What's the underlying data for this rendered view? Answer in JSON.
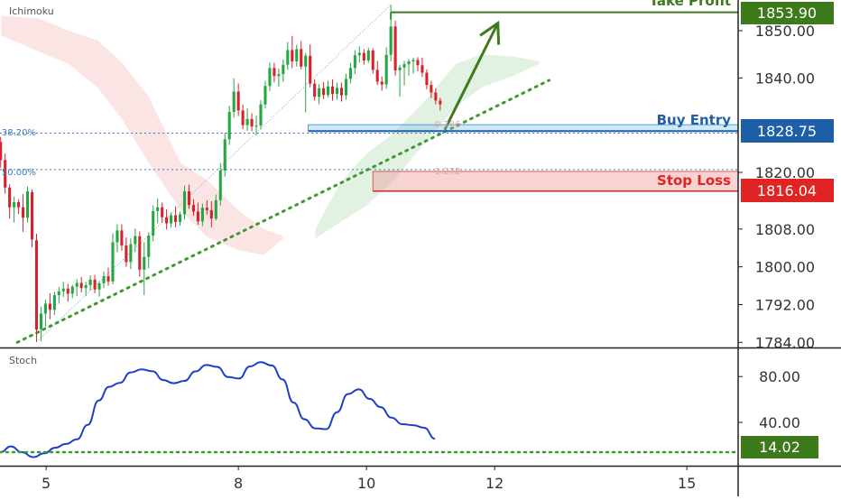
{
  "panels": {
    "price_label": "Ichimoku",
    "oscillator_label": "Stoch"
  },
  "annotations": {
    "take_profit": {
      "label": "Take Profit",
      "price": "1853.90",
      "color": "#3d7a1c"
    },
    "buy_entry": {
      "label": "Buy Entry",
      "price": "1828.75",
      "color": "#1f5fa8"
    },
    "stop_loss": {
      "label": "Stop Loss",
      "price": "1816.04",
      "color": "#e02424"
    },
    "fib_left": [
      {
        "label": "38.20%",
        "value": 1828.3
      },
      {
        "label": "50.00%",
        "value": 1820.6
      }
    ],
    "fib_inner": [
      {
        "label": "0.786",
        "value": 1829.2
      },
      {
        "label": "1.272",
        "value": 1820.4
      }
    ]
  },
  "chart_data": [
    {
      "type": "candlestick",
      "title": "",
      "xlabel": "",
      "ylabel": "",
      "ylim": [
        1783.3,
        1856.5
      ],
      "y_ticks": [
        "1784.00",
        "1792.00",
        "1800.00",
        "1808.00",
        "1820.00",
        "1840.00",
        "1850.00"
      ],
      "x_ticks": [
        "5",
        "8",
        "10",
        "12",
        "15"
      ],
      "x_tick_pos": [
        5,
        8,
        10,
        12,
        15
      ],
      "xlim": [
        4.28,
        15.8
      ],
      "colors": {
        "up": "#26a641",
        "down": "#d6222c"
      },
      "ohlc_notes": "open/high/low/close per bar, read approximately off the price axis",
      "bars": [
        [
          4.29,
          1826.4,
          1827.5,
          1821.0,
          1822.6
        ],
        [
          4.36,
          1822.6,
          1824.0,
          1815.5,
          1816.8
        ],
        [
          4.43,
          1816.8,
          1817.5,
          1810.2,
          1812.6
        ],
        [
          4.5,
          1812.6,
          1814.8,
          1809.4,
          1813.7
        ],
        [
          4.57,
          1813.7,
          1814.3,
          1811.2,
          1812.6
        ],
        [
          4.64,
          1812.6,
          1815.4,
          1807.4,
          1810.4
        ],
        [
          4.71,
          1810.4,
          1817.0,
          1809.4,
          1816.0
        ],
        [
          4.78,
          1815.8,
          1816.4,
          1804.1,
          1805.8
        ],
        [
          4.85,
          1805.6,
          1807.0,
          1784.1,
          1786.7
        ],
        [
          4.92,
          1786.8,
          1791.6,
          1784.2,
          1790.1
        ],
        [
          4.99,
          1790.1,
          1793.0,
          1787.3,
          1792.2
        ],
        [
          5.06,
          1792.2,
          1794.4,
          1788.9,
          1790.9
        ],
        [
          5.13,
          1790.9,
          1794.7,
          1789.8,
          1794.0
        ],
        [
          5.2,
          1794.0,
          1795.7,
          1792.2,
          1794.8
        ],
        [
          5.27,
          1794.8,
          1796.8,
          1793.6,
          1795.4
        ],
        [
          5.34,
          1795.4,
          1796.4,
          1792.6,
          1794.3
        ],
        [
          5.41,
          1794.3,
          1796.2,
          1793.4,
          1795.8
        ],
        [
          5.48,
          1795.8,
          1797.4,
          1793.8,
          1796.6
        ],
        [
          5.55,
          1796.6,
          1797.8,
          1794.6,
          1795.5
        ],
        [
          5.62,
          1795.5,
          1796.8,
          1793.8,
          1796.1
        ],
        [
          5.69,
          1796.1,
          1798.2,
          1795.0,
          1797.3
        ],
        [
          5.76,
          1797.3,
          1798.3,
          1794.4,
          1795.2
        ],
        [
          5.83,
          1795.2,
          1797.0,
          1793.7,
          1796.5
        ],
        [
          5.9,
          1796.5,
          1799.0,
          1795.5,
          1798.0
        ],
        [
          5.97,
          1798.0,
          1799.8,
          1796.0,
          1796.9
        ],
        [
          6.04,
          1796.9,
          1807.1,
          1796.3,
          1805.2
        ],
        [
          6.11,
          1805.2,
          1809.0,
          1803.1,
          1807.7
        ],
        [
          6.18,
          1807.7,
          1809.0,
          1803.4,
          1804.5
        ],
        [
          6.25,
          1804.5,
          1806.2,
          1800.0,
          1801.0
        ],
        [
          6.32,
          1801.0,
          1806.0,
          1799.5,
          1804.8
        ],
        [
          6.39,
          1804.8,
          1808.1,
          1803.1,
          1806.5
        ],
        [
          6.46,
          1806.5,
          1807.5,
          1797.9,
          1799.4
        ],
        [
          6.53,
          1799.4,
          1805.2,
          1794.0,
          1802.1
        ],
        [
          6.6,
          1802.1,
          1807.3,
          1799.7,
          1806.6
        ],
        [
          6.67,
          1806.6,
          1813.0,
          1805.4,
          1811.8
        ],
        [
          6.74,
          1811.8,
          1814.5,
          1809.2,
          1812.6
        ],
        [
          6.81,
          1812.6,
          1813.6,
          1809.3,
          1810.5
        ],
        [
          6.88,
          1810.5,
          1812.2,
          1807.9,
          1809.2
        ],
        [
          6.95,
          1809.2,
          1811.5,
          1808.3,
          1810.9
        ],
        [
          7.02,
          1810.9,
          1812.8,
          1808.4,
          1809.5
        ],
        [
          7.09,
          1809.5,
          1811.7,
          1808.7,
          1811.1
        ],
        [
          7.16,
          1811.1,
          1817.2,
          1810.0,
          1816.0
        ],
        [
          7.23,
          1816.0,
          1817.4,
          1812.3,
          1813.1
        ],
        [
          7.3,
          1813.1,
          1814.3,
          1810.8,
          1811.7
        ],
        [
          7.37,
          1811.7,
          1813.6,
          1808.9,
          1809.6
        ],
        [
          7.44,
          1809.6,
          1813.4,
          1808.6,
          1812.5
        ],
        [
          7.51,
          1812.5,
          1814.1,
          1811.1,
          1812.0
        ],
        [
          7.58,
          1812.0,
          1813.9,
          1808.4,
          1810.2
        ],
        [
          7.65,
          1810.2,
          1815.3,
          1809.8,
          1814.1
        ],
        [
          7.72,
          1814.1,
          1822.0,
          1813.0,
          1820.4
        ],
        [
          7.79,
          1820.4,
          1828.4,
          1819.1,
          1827.0
        ],
        [
          7.86,
          1827.0,
          1834.1,
          1825.8,
          1832.8
        ],
        [
          7.93,
          1832.8,
          1839.9,
          1831.6,
          1837.1
        ],
        [
          8.0,
          1837.1,
          1838.8,
          1831.9,
          1833.1
        ],
        [
          8.07,
          1833.1,
          1834.4,
          1829.1,
          1830.0
        ],
        [
          8.14,
          1830.0,
          1833.6,
          1828.8,
          1831.3
        ],
        [
          8.21,
          1831.3,
          1832.5,
          1828.7,
          1829.7
        ],
        [
          8.28,
          1829.7,
          1832.0,
          1827.8,
          1829.9
        ],
        [
          8.35,
          1829.9,
          1835.3,
          1829.1,
          1834.4
        ],
        [
          8.42,
          1834.4,
          1839.4,
          1833.5,
          1838.3
        ],
        [
          8.49,
          1838.3,
          1843.3,
          1837.2,
          1842.1
        ],
        [
          8.56,
          1842.1,
          1843.2,
          1839.1,
          1840.4
        ],
        [
          8.63,
          1840.4,
          1842.0,
          1838.1,
          1840.8
        ],
        [
          8.7,
          1840.8,
          1843.9,
          1839.2,
          1842.8
        ],
        [
          8.77,
          1842.8,
          1847.6,
          1841.7,
          1845.9
        ],
        [
          8.84,
          1845.9,
          1848.9,
          1842.1,
          1843.5
        ],
        [
          8.91,
          1843.5,
          1847.0,
          1842.4,
          1846.1
        ],
        [
          8.98,
          1846.1,
          1847.8,
          1841.8,
          1842.4
        ],
        [
          9.05,
          1842.4,
          1845.3,
          1832.7,
          1844.7
        ],
        [
          9.12,
          1844.7,
          1847.1,
          1838.0,
          1838.8
        ],
        [
          9.19,
          1838.8,
          1839.7,
          1835.2,
          1836.0
        ],
        [
          9.26,
          1836.0,
          1838.7,
          1834.4,
          1837.8
        ],
        [
          9.33,
          1837.8,
          1839.1,
          1835.5,
          1836.4
        ],
        [
          9.4,
          1836.4,
          1839.4,
          1835.9,
          1838.2
        ],
        [
          9.47,
          1838.2,
          1839.7,
          1835.2,
          1836.6
        ],
        [
          9.54,
          1836.6,
          1839.0,
          1835.4,
          1837.9
        ],
        [
          9.61,
          1837.9,
          1839.0,
          1835.0,
          1836.3
        ],
        [
          9.68,
          1836.3,
          1840.9,
          1835.4,
          1839.8
        ],
        [
          9.75,
          1839.8,
          1843.2,
          1838.8,
          1842.1
        ],
        [
          9.82,
          1842.1,
          1845.9,
          1840.8,
          1844.8
        ],
        [
          9.89,
          1844.8,
          1846.7,
          1843.2,
          1845.3
        ],
        [
          9.96,
          1845.3,
          1846.1,
          1842.8,
          1843.7
        ],
        [
          10.03,
          1843.7,
          1846.4,
          1843.2,
          1845.8
        ],
        [
          10.1,
          1845.8,
          1846.3,
          1840.9,
          1841.7
        ],
        [
          10.17,
          1841.7,
          1843.6,
          1838.5,
          1839.2
        ],
        [
          10.24,
          1839.2,
          1840.3,
          1837.3,
          1838.6
        ],
        [
          10.31,
          1838.6,
          1846.5,
          1837.7,
          1844.9
        ],
        [
          10.38,
          1844.9,
          1855.5,
          1843.5,
          1850.9
        ],
        [
          10.45,
          1850.9,
          1852.1,
          1840.5,
          1841.6
        ],
        [
          10.52,
          1841.6,
          1842.8,
          1836.0,
          1842.2
        ],
        [
          10.59,
          1842.2,
          1843.6,
          1838.4,
          1842.9
        ],
        [
          10.66,
          1842.9,
          1844.0,
          1840.5,
          1843.5
        ],
        [
          10.73,
          1843.5,
          1844.3,
          1840.9,
          1843.8
        ],
        [
          10.8,
          1843.8,
          1844.4,
          1841.4,
          1842.7
        ],
        [
          10.87,
          1842.7,
          1844.3,
          1840.2,
          1841.1
        ],
        [
          10.94,
          1841.1,
          1841.8,
          1837.6,
          1838.5
        ],
        [
          11.01,
          1838.5,
          1839.4,
          1835.7,
          1836.9
        ],
        [
          11.08,
          1836.9,
          1837.8,
          1834.4,
          1835.2
        ],
        [
          11.15,
          1835.2,
          1835.8,
          1833.1,
          1834.4
        ]
      ],
      "cloud": {
        "red_top": [
          [
            4.3,
            1853.2
          ],
          [
            4.9,
            1852.5
          ],
          [
            5.35,
            1850.0
          ],
          [
            5.8,
            1848.0
          ],
          [
            6.2,
            1843.0
          ],
          [
            6.6,
            1836.0
          ],
          [
            7.1,
            1822.0
          ],
          [
            7.5,
            1818.5
          ],
          [
            8.0,
            1812.0
          ],
          [
            8.4,
            1808.0
          ],
          [
            8.7,
            1806.5
          ]
        ],
        "red_bottom": [
          [
            4.3,
            1849.0
          ],
          [
            4.9,
            1845.5
          ],
          [
            5.35,
            1843.0
          ],
          [
            5.8,
            1838.0
          ],
          [
            6.2,
            1831.0
          ],
          [
            6.6,
            1822.0
          ],
          [
            7.1,
            1812.0
          ],
          [
            7.5,
            1806.5
          ],
          [
            8.0,
            1803.5
          ],
          [
            8.4,
            1802.5
          ],
          [
            8.7,
            1806.0
          ]
        ],
        "green_top": [
          [
            9.2,
            1808.0
          ],
          [
            9.6,
            1818.0
          ],
          [
            10.0,
            1824.0
          ],
          [
            10.4,
            1828.0
          ],
          [
            10.9,
            1835.0
          ],
          [
            11.4,
            1843.0
          ],
          [
            11.8,
            1845.0
          ],
          [
            12.3,
            1844.5
          ],
          [
            12.7,
            1843.5
          ]
        ],
        "green_bottom": [
          [
            9.2,
            1806.0
          ],
          [
            9.6,
            1809.5
          ],
          [
            10.0,
            1813.0
          ],
          [
            10.4,
            1818.0
          ],
          [
            10.9,
            1826.0
          ],
          [
            11.4,
            1834.0
          ],
          [
            11.8,
            1838.0
          ],
          [
            12.3,
            1840.5
          ],
          [
            12.7,
            1843.0
          ]
        ]
      },
      "trend_dotted": [
        [
          4.55,
          1784.0
        ],
        [
          12.85,
          1839.5
        ]
      ],
      "projection_arrow": [
        [
          11.22,
          1829.0
        ],
        [
          12.05,
          1851.6
        ]
      ],
      "fib_diagonal": [
        [
          4.85,
          1784.1
        ],
        [
          10.38,
          1855.5
        ]
      ]
    },
    {
      "type": "line",
      "title": "",
      "xlabel": "",
      "ylabel": "",
      "ylim": [
        3.0,
        103.0
      ],
      "y_ticks": [
        "80.00",
        "40.00"
      ],
      "level": {
        "label": "14.02",
        "value": 14.02
      },
      "series": [
        {
          "values": [
            [
              4.29,
              14.1
            ],
            [
              4.45,
              19.1
            ],
            [
              4.62,
              14.0
            ],
            [
              4.8,
              9.7
            ],
            [
              4.97,
              13.0
            ],
            [
              5.14,
              17.9
            ],
            [
              5.31,
              21.2
            ],
            [
              5.48,
              25.2
            ],
            [
              5.65,
              37.9
            ],
            [
              5.82,
              59.1
            ],
            [
              5.98,
              71.0
            ],
            [
              6.15,
              74.5
            ],
            [
              6.32,
              83.6
            ],
            [
              6.49,
              86.2
            ],
            [
              6.66,
              84.6
            ],
            [
              6.83,
              76.9
            ],
            [
              6.99,
              74.2
            ],
            [
              7.16,
              76.2
            ],
            [
              7.33,
              84.5
            ],
            [
              7.5,
              90.1
            ],
            [
              7.67,
              88.4
            ],
            [
              7.84,
              79.6
            ],
            [
              8.01,
              78.3
            ],
            [
              8.18,
              88.8
            ],
            [
              8.35,
              92.5
            ],
            [
              8.52,
              89.7
            ],
            [
              8.69,
              77.5
            ],
            [
              8.86,
              57.3
            ],
            [
              9.03,
              42.8
            ],
            [
              9.2,
              34.8
            ],
            [
              9.37,
              34.1
            ],
            [
              9.54,
              48.9
            ],
            [
              9.71,
              64.7
            ],
            [
              9.88,
              68.8
            ],
            [
              10.05,
              60.5
            ],
            [
              10.22,
              53.3
            ],
            [
              10.39,
              44.1
            ],
            [
              10.56,
              38.4
            ],
            [
              10.73,
              37.6
            ],
            [
              10.9,
              35.3
            ],
            [
              11.07,
              25.7
            ]
          ]
        }
      ]
    }
  ]
}
